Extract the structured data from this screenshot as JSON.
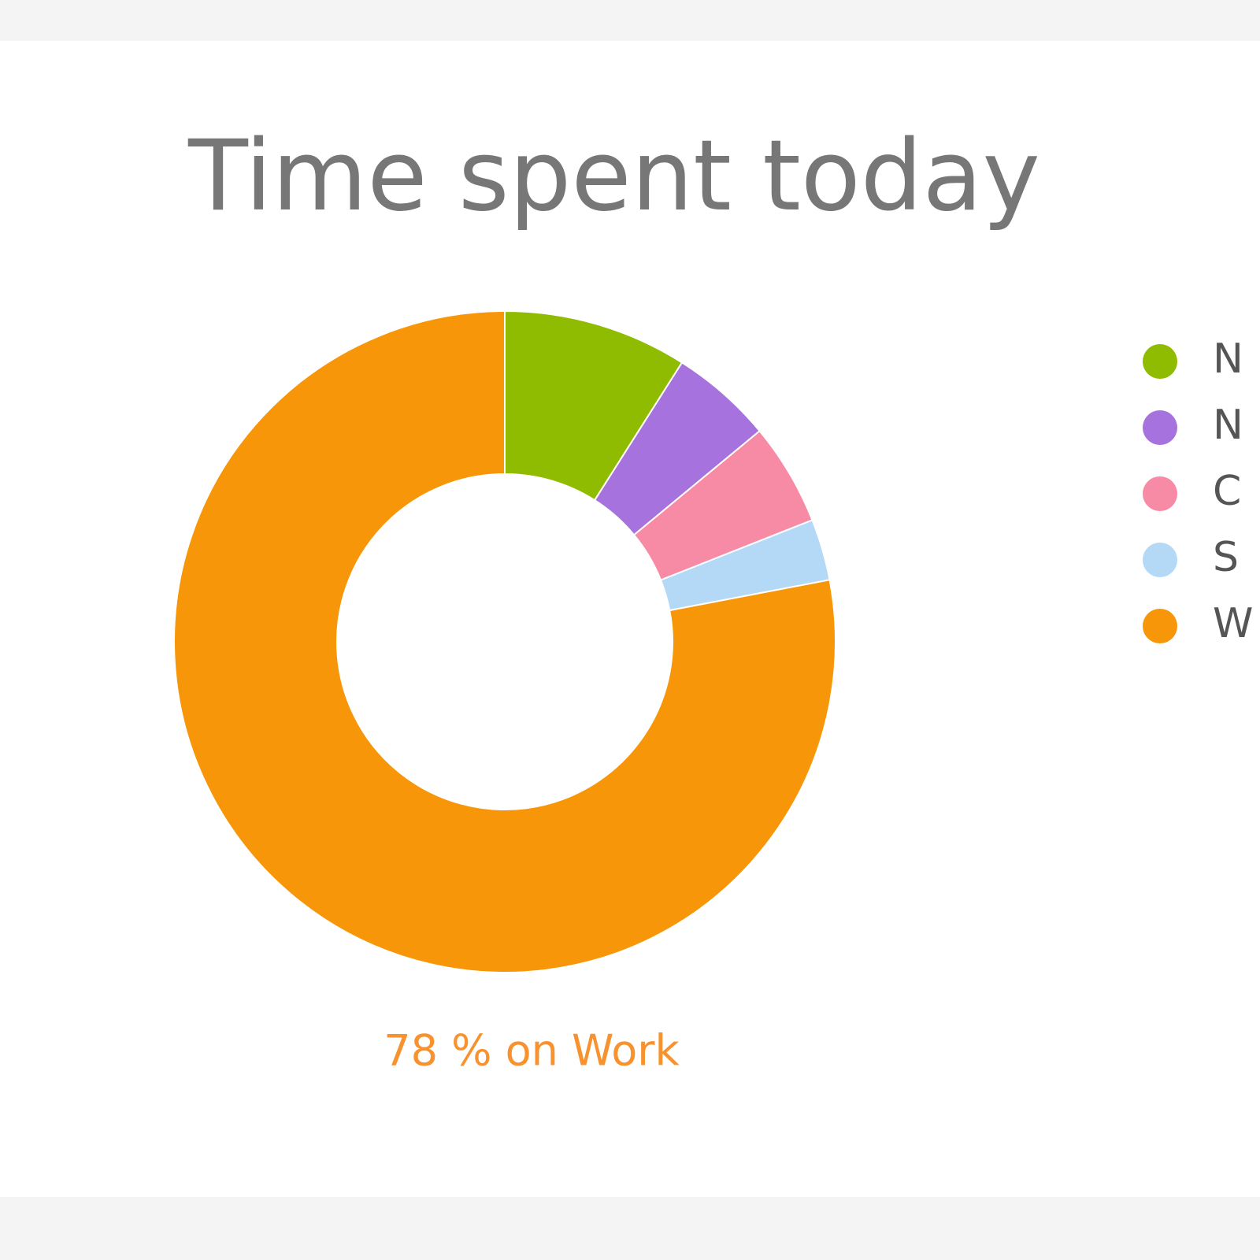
{
  "chart_data": {
    "type": "donut",
    "title": "Time spent today",
    "categories": [
      "N",
      "N",
      "C",
      "S",
      "W"
    ],
    "values": [
      9,
      5,
      5,
      3,
      78
    ],
    "colors": [
      "#8fbb00",
      "#a672de",
      "#f78aa5",
      "#b3d9f7",
      "#f79608"
    ],
    "annotation": "78 % on Work",
    "legend": "right"
  }
}
